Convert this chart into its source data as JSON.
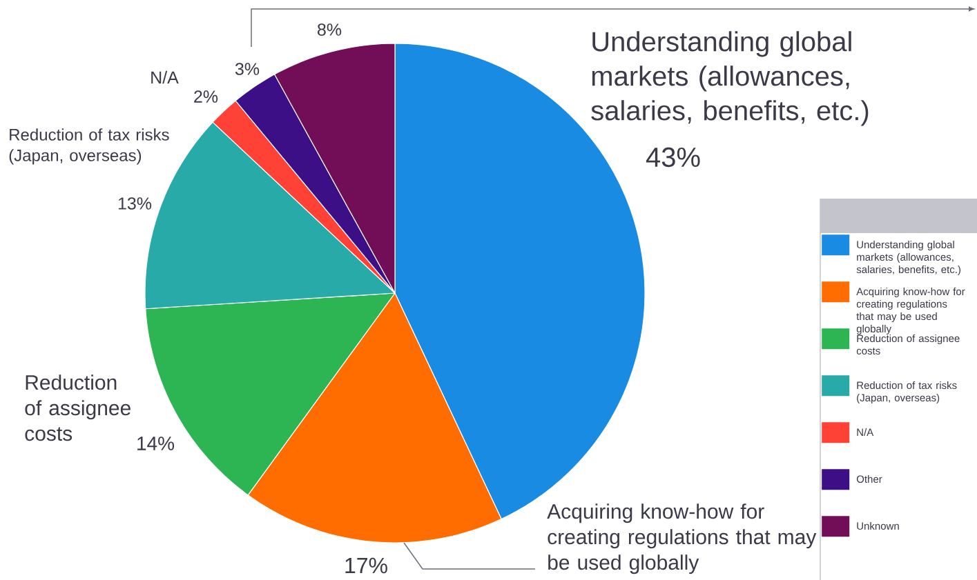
{
  "chart_data": {
    "type": "pie",
    "categories": [
      "Understanding global markets (allowances, salaries, benefits, etc.)",
      "Acquiring know-how for creating regulations that may be used globally",
      "Reduction of assignee costs",
      "Reduction of tax risks (Japan, overseas)",
      "N/A",
      "Other",
      "Unknown"
    ],
    "values": [
      43,
      17,
      14,
      13,
      2,
      3,
      8
    ],
    "colors": [
      "#1a8be3",
      "#ff6d00",
      "#2db554",
      "#27aaa8",
      "#ff4136",
      "#3c0f87",
      "#720e57"
    ],
    "value_labels": [
      "43%",
      "17%",
      "14%",
      "13%",
      "2%",
      "3%",
      "8%"
    ],
    "legend": "right"
  }
}
